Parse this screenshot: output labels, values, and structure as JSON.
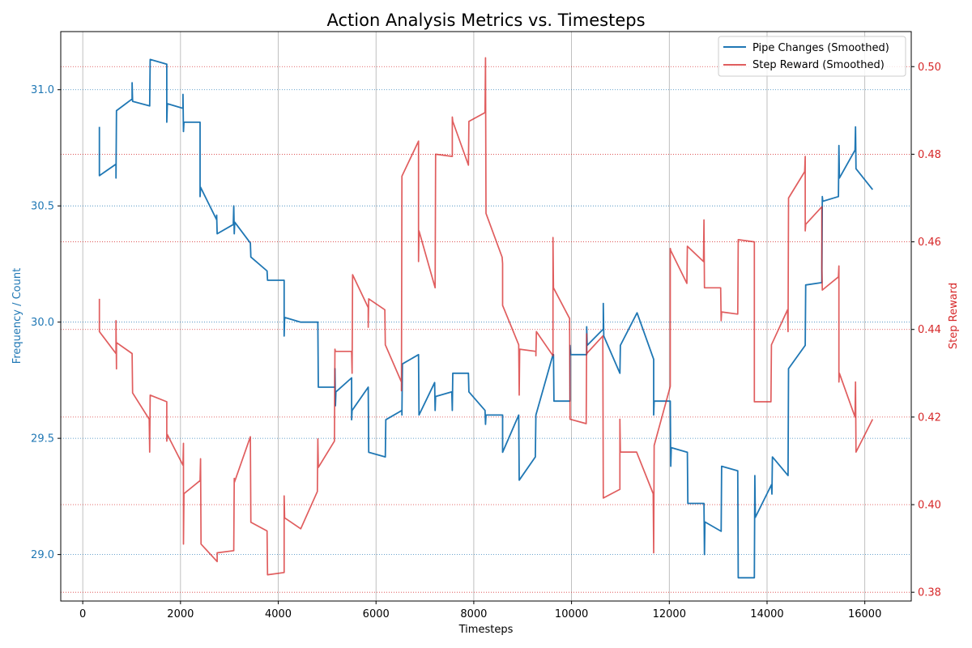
{
  "chart_data": {
    "type": "line",
    "title": "Action Analysis Metrics vs. Timesteps",
    "xlabel": "Timesteps",
    "ylabel_left": "Frequency / Count",
    "ylabel_right": "Step Reward",
    "xlim": [
      -450,
      16950
    ],
    "ylim_left": [
      28.8,
      31.25
    ],
    "ylim_right": [
      0.378,
      0.508
    ],
    "x_ticks": [
      0,
      2000,
      4000,
      6000,
      8000,
      10000,
      12000,
      14000,
      16000
    ],
    "y_ticks_left": [
      29.0,
      29.5,
      30.0,
      30.5,
      31.0
    ],
    "y_ticks_right": [
      0.38,
      0.4,
      0.42,
      0.44,
      0.46,
      0.48,
      0.5
    ],
    "grid": {
      "x": true,
      "y_left": true,
      "y_right": true
    },
    "legend_position": "top-right",
    "colors": {
      "left_axis": "#1f77b4",
      "right_axis": "#d62728",
      "series_pipe": "#1f77b4",
      "series_reward": "#d62728"
    },
    "series": [
      {
        "name": "Pipe Changes (Smoothed)",
        "axis": "left",
        "points": [
          [
            340,
            30.84
          ],
          [
            340,
            30.63
          ],
          [
            680,
            30.68
          ],
          [
            680,
            30.62
          ],
          [
            690,
            30.91
          ],
          [
            1010,
            30.96
          ],
          [
            1010,
            31.03
          ],
          [
            1020,
            30.95
          ],
          [
            1370,
            30.93
          ],
          [
            1380,
            31.13
          ],
          [
            1720,
            31.11
          ],
          [
            1720,
            30.86
          ],
          [
            1730,
            30.94
          ],
          [
            2050,
            30.92
          ],
          [
            2050,
            30.98
          ],
          [
            2060,
            30.82
          ],
          [
            2070,
            30.86
          ],
          [
            2400,
            30.86
          ],
          [
            2400,
            30.54
          ],
          [
            2410,
            30.58
          ],
          [
            2740,
            30.44
          ],
          [
            2740,
            30.46
          ],
          [
            2750,
            30.38
          ],
          [
            3080,
            30.42
          ],
          [
            3090,
            30.5
          ],
          [
            3100,
            30.38
          ],
          [
            3110,
            30.43
          ],
          [
            3430,
            30.34
          ],
          [
            3440,
            30.28
          ],
          [
            3770,
            30.22
          ],
          [
            3780,
            30.18
          ],
          [
            4120,
            30.18
          ],
          [
            4120,
            29.94
          ],
          [
            4130,
            30.02
          ],
          [
            4460,
            30.0
          ],
          [
            4810,
            30.0
          ],
          [
            4820,
            29.72
          ],
          [
            5160,
            29.72
          ],
          [
            5160,
            29.8
          ],
          [
            5170,
            29.64
          ],
          [
            5180,
            29.7
          ],
          [
            5500,
            29.76
          ],
          [
            5500,
            29.58
          ],
          [
            5510,
            29.62
          ],
          [
            5840,
            29.72
          ],
          [
            5850,
            29.44
          ],
          [
            6190,
            29.42
          ],
          [
            6200,
            29.58
          ],
          [
            6530,
            29.62
          ],
          [
            6530,
            29.6
          ],
          [
            6540,
            29.82
          ],
          [
            6870,
            29.86
          ],
          [
            6880,
            29.6
          ],
          [
            7200,
            29.74
          ],
          [
            7210,
            29.62
          ],
          [
            7220,
            29.68
          ],
          [
            7550,
            29.7
          ],
          [
            7560,
            29.62
          ],
          [
            7570,
            29.78
          ],
          [
            7890,
            29.78
          ],
          [
            7900,
            29.7
          ],
          [
            8230,
            29.62
          ],
          [
            8240,
            29.56
          ],
          [
            8250,
            29.6
          ],
          [
            8590,
            29.6
          ],
          [
            8590,
            29.44
          ],
          [
            8920,
            29.6
          ],
          [
            8930,
            29.32
          ],
          [
            9260,
            29.42
          ],
          [
            9270,
            29.6
          ],
          [
            9620,
            29.86
          ],
          [
            9630,
            29.86
          ],
          [
            9640,
            29.66
          ],
          [
            9970,
            29.66
          ],
          [
            9970,
            29.9
          ],
          [
            9980,
            29.86
          ],
          [
            10310,
            29.86
          ],
          [
            10310,
            29.98
          ],
          [
            10320,
            29.9
          ],
          [
            10650,
            29.97
          ],
          [
            10650,
            30.08
          ],
          [
            10660,
            29.94
          ],
          [
            10990,
            29.78
          ],
          [
            11000,
            29.9
          ],
          [
            11340,
            30.04
          ],
          [
            11680,
            29.84
          ],
          [
            11680,
            29.6
          ],
          [
            11690,
            29.66
          ],
          [
            12020,
            29.66
          ],
          [
            12030,
            29.38
          ],
          [
            12040,
            29.46
          ],
          [
            12370,
            29.44
          ],
          [
            12380,
            29.22
          ],
          [
            12710,
            29.22
          ],
          [
            12720,
            29.0
          ],
          [
            12730,
            29.14
          ],
          [
            13060,
            29.1
          ],
          [
            13070,
            29.38
          ],
          [
            13400,
            29.36
          ],
          [
            13410,
            28.9
          ],
          [
            13740,
            28.9
          ],
          [
            13750,
            29.34
          ],
          [
            13760,
            29.16
          ],
          [
            14090,
            29.3
          ],
          [
            14100,
            29.26
          ],
          [
            14110,
            29.42
          ],
          [
            14430,
            29.34
          ],
          [
            14440,
            29.8
          ],
          [
            14780,
            29.9
          ],
          [
            14790,
            30.16
          ],
          [
            15120,
            30.17
          ],
          [
            15130,
            30.54
          ],
          [
            15140,
            30.52
          ],
          [
            15460,
            30.54
          ],
          [
            15470,
            30.76
          ],
          [
            15480,
            30.62
          ],
          [
            15800,
            30.74
          ],
          [
            15810,
            30.84
          ],
          [
            15820,
            30.66
          ],
          [
            16160,
            30.57
          ]
        ]
      },
      {
        "name": "Step Reward (Smoothed)",
        "axis": "right",
        "points": [
          [
            340,
            0.447
          ],
          [
            340,
            0.4395
          ],
          [
            680,
            0.4345
          ],
          [
            680,
            0.442
          ],
          [
            690,
            0.431
          ],
          [
            690,
            0.437
          ],
          [
            1010,
            0.4345
          ],
          [
            1020,
            0.4255
          ],
          [
            1360,
            0.4195
          ],
          [
            1370,
            0.412
          ],
          [
            1380,
            0.425
          ],
          [
            1720,
            0.4235
          ],
          [
            1720,
            0.4145
          ],
          [
            1730,
            0.416
          ],
          [
            2050,
            0.409
          ],
          [
            2060,
            0.414
          ],
          [
            2060,
            0.391
          ],
          [
            2070,
            0.4025
          ],
          [
            2400,
            0.4055
          ],
          [
            2410,
            0.4105
          ],
          [
            2420,
            0.391
          ],
          [
            2750,
            0.387
          ],
          [
            2750,
            0.389
          ],
          [
            3090,
            0.3895
          ],
          [
            3090,
            0.39
          ],
          [
            3100,
            0.406
          ],
          [
            3100,
            0.405
          ],
          [
            3430,
            0.4155
          ],
          [
            3440,
            0.396
          ],
          [
            3770,
            0.394
          ],
          [
            3780,
            0.384
          ],
          [
            4120,
            0.3845
          ],
          [
            4120,
            0.402
          ],
          [
            4130,
            0.397
          ],
          [
            4460,
            0.3945
          ],
          [
            4800,
            0.403
          ],
          [
            4810,
            0.415
          ],
          [
            4820,
            0.4085
          ],
          [
            5150,
            0.4145
          ],
          [
            5160,
            0.4355
          ],
          [
            5170,
            0.435
          ],
          [
            5500,
            0.435
          ],
          [
            5510,
            0.43
          ],
          [
            5520,
            0.4525
          ],
          [
            5840,
            0.445
          ],
          [
            5840,
            0.4405
          ],
          [
            5850,
            0.447
          ],
          [
            6180,
            0.4445
          ],
          [
            6190,
            0.4365
          ],
          [
            6520,
            0.428
          ],
          [
            6520,
            0.426
          ],
          [
            6530,
            0.475
          ],
          [
            6870,
            0.483
          ],
          [
            6870,
            0.4555
          ],
          [
            6880,
            0.4625
          ],
          [
            7210,
            0.4495
          ],
          [
            7220,
            0.48
          ],
          [
            7560,
            0.4795
          ],
          [
            7560,
            0.4885
          ],
          [
            7570,
            0.4875
          ],
          [
            7890,
            0.4775
          ],
          [
            7900,
            0.4875
          ],
          [
            8230,
            0.4895
          ],
          [
            8240,
            0.502
          ],
          [
            8250,
            0.4665
          ],
          [
            8580,
            0.4565
          ],
          [
            8590,
            0.455
          ],
          [
            8590,
            0.4455
          ],
          [
            8920,
            0.4365
          ],
          [
            8930,
            0.425
          ],
          [
            8940,
            0.4355
          ],
          [
            9270,
            0.435
          ],
          [
            9270,
            0.434
          ],
          [
            9280,
            0.4395
          ],
          [
            9620,
            0.434
          ],
          [
            9620,
            0.461
          ],
          [
            9630,
            0.4495
          ],
          [
            9960,
            0.4425
          ],
          [
            9970,
            0.4195
          ],
          [
            10300,
            0.4185
          ],
          [
            10310,
            0.439
          ],
          [
            10310,
            0.4345
          ],
          [
            10640,
            0.4385
          ],
          [
            10650,
            0.4015
          ],
          [
            10990,
            0.4035
          ],
          [
            10990,
            0.4195
          ],
          [
            11000,
            0.412
          ],
          [
            11330,
            0.412
          ],
          [
            11670,
            0.4025
          ],
          [
            11680,
            0.389
          ],
          [
            11690,
            0.4135
          ],
          [
            12020,
            0.427
          ],
          [
            12020,
            0.4585
          ],
          [
            12030,
            0.458
          ],
          [
            12360,
            0.4505
          ],
          [
            12370,
            0.459
          ],
          [
            12700,
            0.4555
          ],
          [
            12710,
            0.465
          ],
          [
            12720,
            0.4495
          ],
          [
            13050,
            0.4495
          ],
          [
            13060,
            0.442
          ],
          [
            13070,
            0.444
          ],
          [
            13400,
            0.4435
          ],
          [
            13410,
            0.4605
          ],
          [
            13740,
            0.46
          ],
          [
            13740,
            0.4235
          ],
          [
            14080,
            0.4235
          ],
          [
            14090,
            0.4365
          ],
          [
            14420,
            0.4445
          ],
          [
            14430,
            0.4395
          ],
          [
            14440,
            0.47
          ],
          [
            14770,
            0.476
          ],
          [
            14780,
            0.4795
          ],
          [
            14780,
            0.4625
          ],
          [
            14790,
            0.464
          ],
          [
            15120,
            0.468
          ],
          [
            15120,
            0.454
          ],
          [
            15130,
            0.449
          ],
          [
            15460,
            0.452
          ],
          [
            15470,
            0.4545
          ],
          [
            15470,
            0.428
          ],
          [
            15480,
            0.43
          ],
          [
            15800,
            0.42
          ],
          [
            15810,
            0.428
          ],
          [
            15820,
            0.412
          ],
          [
            16160,
            0.4195
          ]
        ]
      }
    ]
  }
}
